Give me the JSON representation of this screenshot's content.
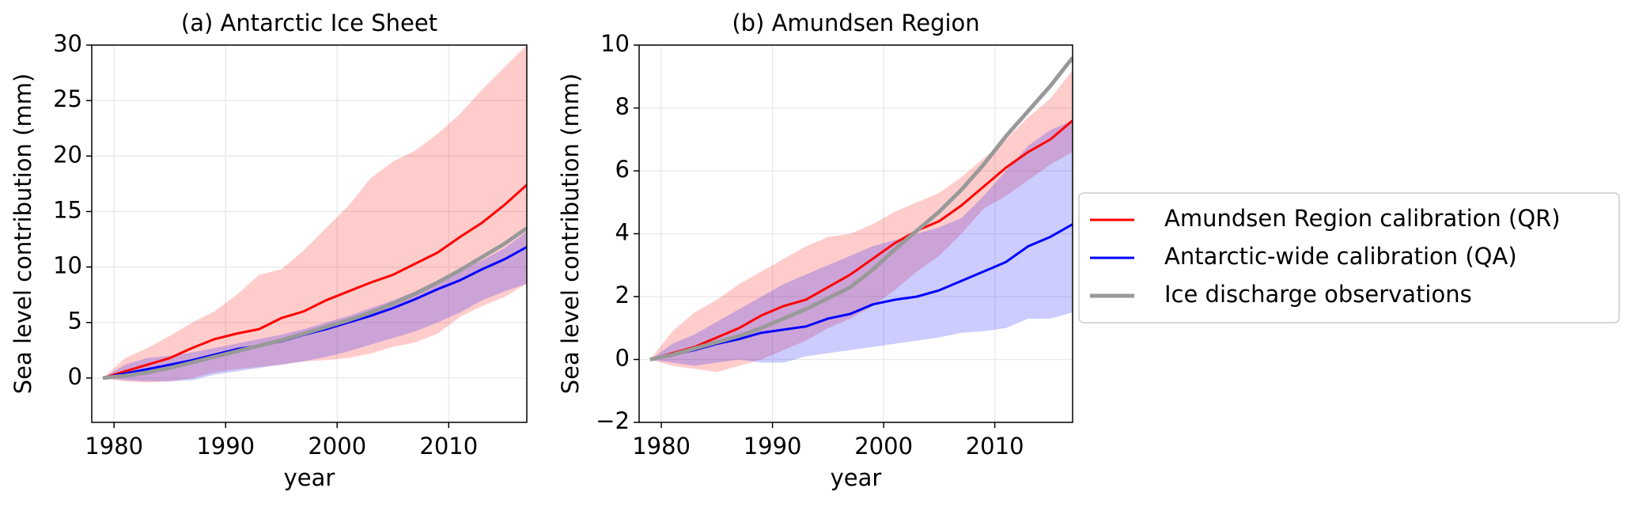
{
  "chart_data": [
    {
      "type": "line",
      "title": "(a) Antarctic Ice Sheet",
      "xlabel": "year",
      "ylabel": "Sea level contribution (mm)",
      "x": [
        1979,
        1981,
        1983,
        1985,
        1987,
        1989,
        1991,
        1993,
        1995,
        1997,
        1999,
        2001,
        2003,
        2005,
        2007,
        2009,
        2011,
        2013,
        2015,
        2017
      ],
      "xlim": [
        1978,
        2017
      ],
      "ylim": [
        -4,
        30
      ],
      "xticks": [
        1980,
        1990,
        2000,
        2010
      ],
      "yticks": [
        0,
        5,
        10,
        15,
        20,
        25,
        30
      ],
      "grid": true,
      "series": [
        {
          "color": "#ff0000",
          "values": [
            0,
            0.6,
            1.2,
            1.8,
            2.7,
            3.5,
            4.0,
            4.4,
            5.4,
            6.0,
            7.0,
            7.8,
            8.6,
            9.3,
            10.3,
            11.3,
            12.7,
            14.0,
            15.6,
            17.4
          ],
          "lower": [
            0,
            -0.3,
            -0.4,
            -0.3,
            0,
            0.5,
            0.8,
            1.0,
            1.2,
            1.5,
            1.6,
            1.8,
            2.2,
            2.8,
            3.2,
            4.0,
            5.5,
            6.5,
            7.3,
            8.5
          ],
          "upper": [
            0,
            1.8,
            2.7,
            3.8,
            5.0,
            6.0,
            7.5,
            9.3,
            9.8,
            11.5,
            13.5,
            15.5,
            18,
            19.5,
            20.5,
            22,
            23.8,
            26,
            28,
            30
          ]
        },
        {
          "color": "#0000ff",
          "values": [
            0,
            0.4,
            0.8,
            1.2,
            1.6,
            2.1,
            2.6,
            2.9,
            3.3,
            3.9,
            4.4,
            5.0,
            5.6,
            6.3,
            7.1,
            8.0,
            8.8,
            9.8,
            10.7,
            11.8
          ],
          "lower": [
            0,
            -0.2,
            -0.3,
            -0.3,
            -0.2,
            0.3,
            0.6,
            0.9,
            1.2,
            1.5,
            1.9,
            2.4,
            3.0,
            3.6,
            4.2,
            5.0,
            5.9,
            7.0,
            7.8,
            8.5
          ],
          "upper": [
            0,
            1.2,
            1.8,
            2.0,
            2.3,
            2.7,
            3.1,
            3.5,
            3.9,
            4.4,
            5.0,
            5.6,
            6.3,
            7.0,
            7.8,
            8.8,
            9.6,
            10.6,
            11.7,
            13.2
          ]
        },
        {
          "color": "#999999",
          "values": [
            0,
            0.2,
            0.5,
            0.9,
            1.4,
            1.9,
            2.4,
            2.9,
            3.4,
            4.0,
            4.6,
            5.2,
            5.9,
            6.7,
            7.6,
            8.6,
            9.7,
            10.9,
            12.1,
            13.5
          ]
        }
      ]
    },
    {
      "type": "line",
      "title": "(b) Amundsen Region",
      "xlabel": "year",
      "ylabel": "Sea level contribution (mm)",
      "x": [
        1979,
        1981,
        1983,
        1985,
        1987,
        1989,
        1991,
        1993,
        1995,
        1997,
        1999,
        2001,
        2003,
        2005,
        2007,
        2009,
        2011,
        2013,
        2015,
        2017
      ],
      "xlim": [
        1978,
        2017
      ],
      "ylim": [
        -2,
        10
      ],
      "xticks": [
        1980,
        1990,
        2000,
        2010
      ],
      "yticks": [
        {
          "value": -2,
          "label": "−2"
        },
        0,
        2,
        4,
        6,
        8,
        10
      ],
      "grid": true,
      "legend": "outside right",
      "series": [
        {
          "name": "Amundsen Region calibration (QR)",
          "color": "#ff0000",
          "values": [
            0,
            0.2,
            0.4,
            0.7,
            1.0,
            1.4,
            1.7,
            1.9,
            2.3,
            2.7,
            3.2,
            3.7,
            4.1,
            4.4,
            4.9,
            5.5,
            6.1,
            6.6,
            7.0,
            7.6
          ],
          "lower": [
            0,
            -0.2,
            -0.3,
            -0.4,
            -0.2,
            0,
            0.3,
            0.6,
            1.0,
            1.3,
            1.7,
            2.2,
            2.8,
            3.3,
            4.0,
            4.8,
            5.2,
            5.7,
            6.2,
            6.6
          ],
          "upper": [
            0,
            0.9,
            1.5,
            1.9,
            2.4,
            2.8,
            3.2,
            3.6,
            3.9,
            4.0,
            4.3,
            4.7,
            5.0,
            5.3,
            5.8,
            6.4,
            7.0,
            7.7,
            8.3,
            9.2
          ]
        },
        {
          "name": "Antarctic-wide calibration (QA)",
          "color": "#0000ff",
          "values": [
            0,
            0.15,
            0.3,
            0.5,
            0.65,
            0.85,
            0.95,
            1.05,
            1.3,
            1.45,
            1.75,
            1.9,
            2.0,
            2.2,
            2.5,
            2.8,
            3.1,
            3.6,
            3.9,
            4.3
          ],
          "lower": [
            0,
            -0.1,
            -0.2,
            -0.1,
            0,
            -0.1,
            -0.1,
            0.1,
            0.2,
            0.3,
            0.4,
            0.5,
            0.6,
            0.7,
            0.85,
            0.9,
            1.0,
            1.3,
            1.3,
            1.5
          ],
          "upper": [
            0,
            0.5,
            0.8,
            1.2,
            1.6,
            2.0,
            2.4,
            2.7,
            3.0,
            3.3,
            3.6,
            3.8,
            4.0,
            4.2,
            4.5,
            5.2,
            6.0,
            6.8,
            7.3,
            7.6
          ]
        },
        {
          "name": "Ice discharge observations",
          "color": "#999999",
          "values": [
            0,
            0.15,
            0.35,
            0.55,
            0.75,
            1.0,
            1.3,
            1.6,
            1.95,
            2.3,
            2.85,
            3.5,
            4.1,
            4.7,
            5.4,
            6.2,
            7.1,
            7.9,
            8.7,
            9.6
          ]
        }
      ]
    }
  ]
}
